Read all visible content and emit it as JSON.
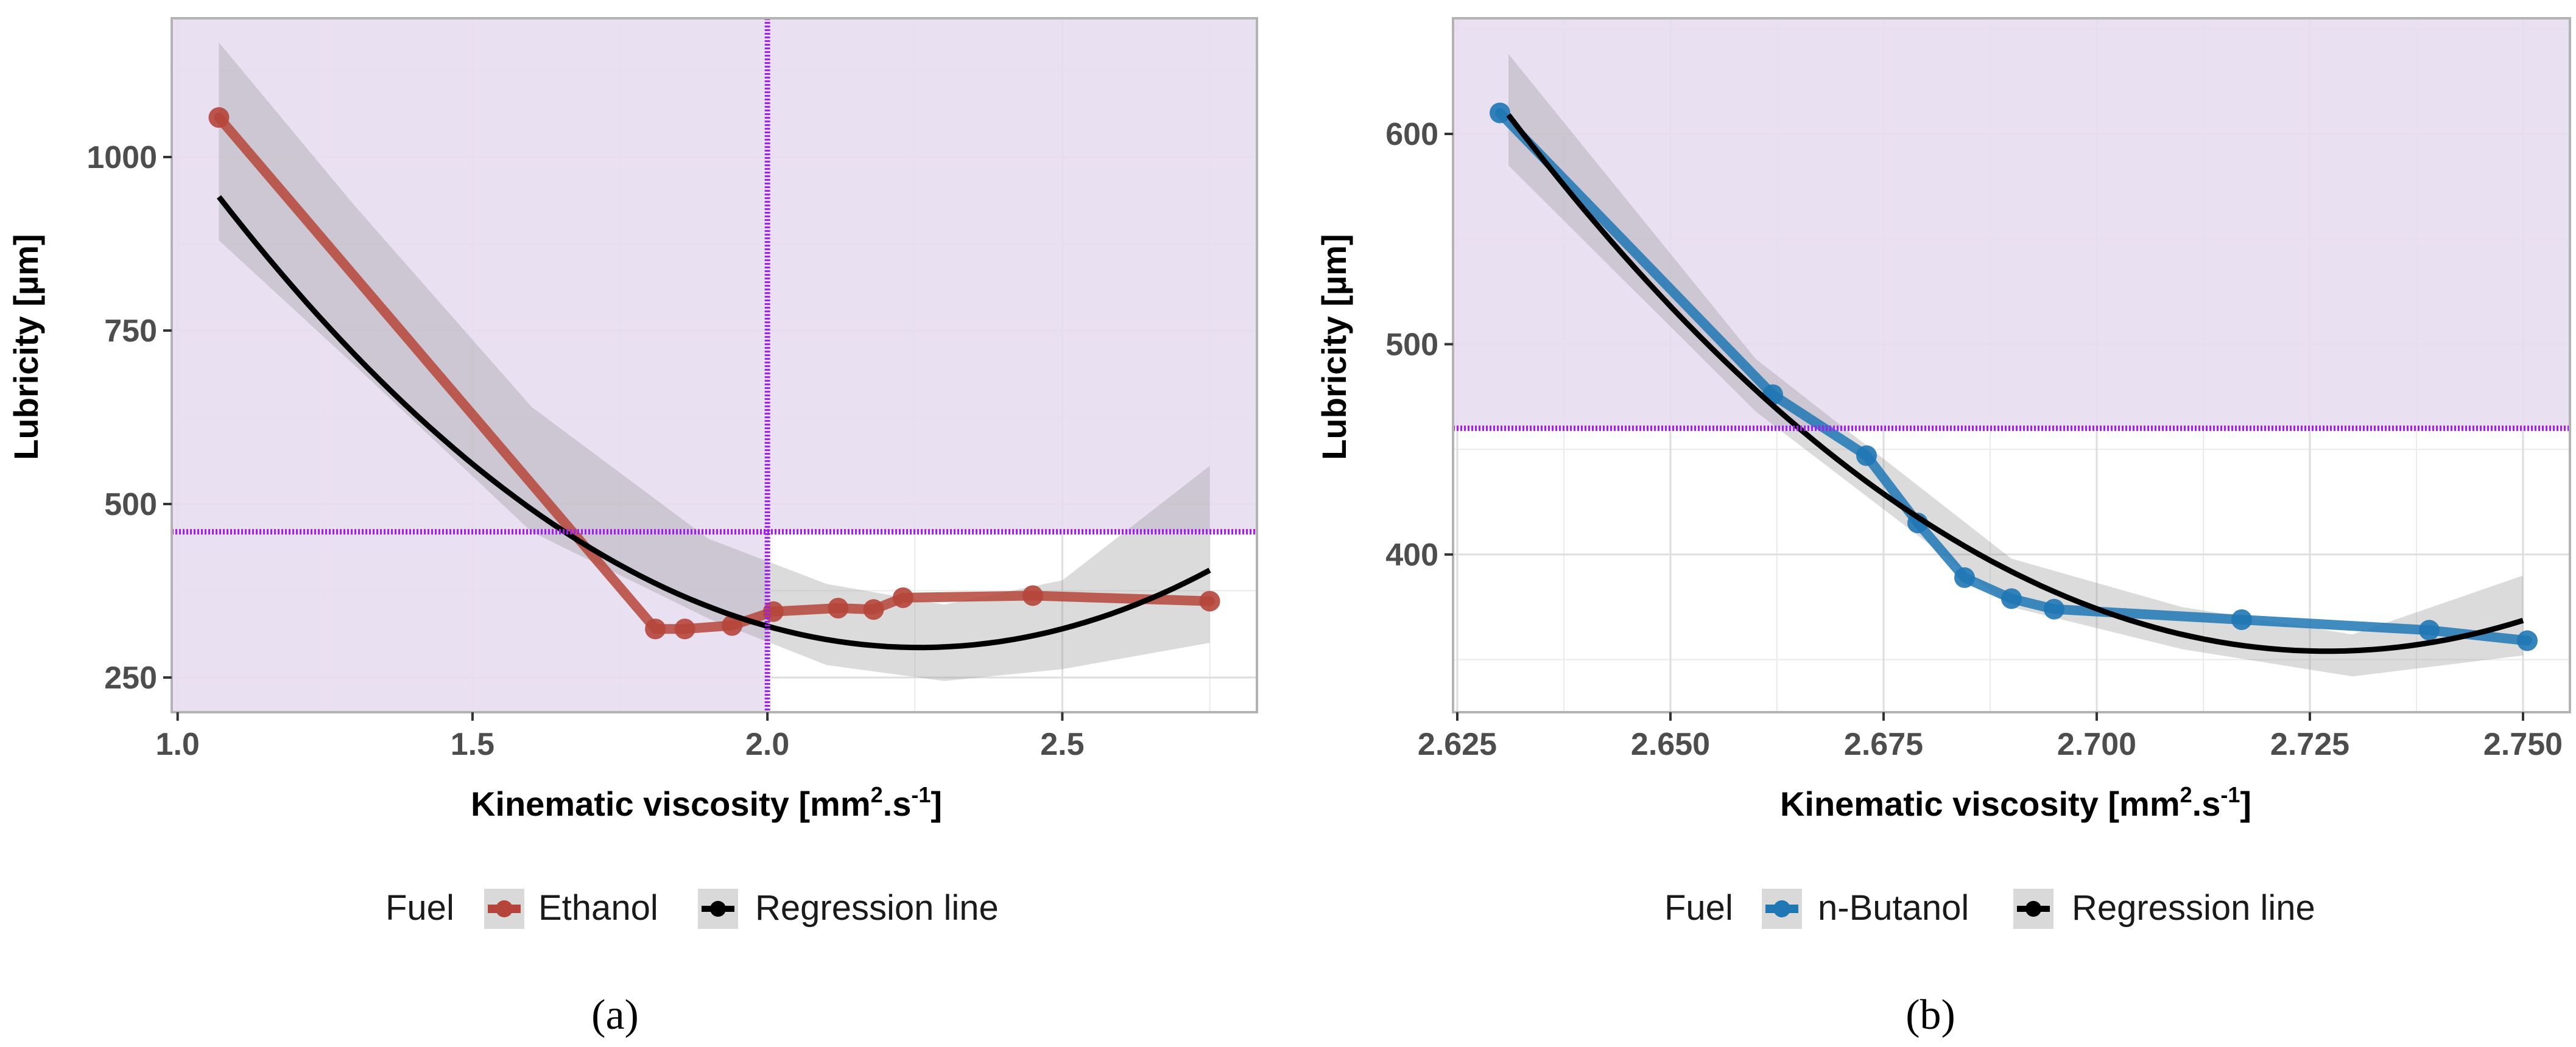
{
  "chart_data": [
    {
      "type": "line",
      "panel_label": "(a)",
      "xlabel_main": "Kinematic viscosity [mm",
      "xlabel_sup1": "2",
      "xlabel_mid": ".s",
      "xlabel_sup2": "-1",
      "xlabel_end": "]",
      "ylabel": "Lubricity [µm]",
      "xlim": [
        0.99,
        2.83
      ],
      "ylim": [
        200,
        1200
      ],
      "x_ticks": [
        1.0,
        1.5,
        2.0,
        2.5
      ],
      "x_tick_labels": [
        "1.0",
        "1.5",
        "2.0",
        "2.5"
      ],
      "y_ticks": [
        250,
        500,
        750,
        1000
      ],
      "y_tick_labels": [
        "250",
        "500",
        "750",
        "1000"
      ],
      "shaded_region": {
        "description": "limit area",
        "color": "#e7ddf1"
      },
      "hline": 460,
      "vline": 2.0,
      "limit_color": "#a020f0",
      "series": [
        {
          "name": "Ethanol",
          "color": "#b5453a",
          "x": [
            1.07,
            1.81,
            1.86,
            1.94,
            2.01,
            2.12,
            2.18,
            2.23,
            2.45,
            2.75
          ],
          "y": [
            1057,
            320,
            320,
            325,
            345,
            350,
            348,
            365,
            368,
            360
          ]
        }
      ],
      "regression": {
        "name": "Regression line",
        "coef": [
          2638.9,
          -2077.5,
          460.0
        ],
        "x_range": [
          1.07,
          2.75
        ],
        "band": {
          "x": [
            1.07,
            1.3,
            1.6,
            1.9,
            2.1,
            2.3,
            2.5,
            2.75
          ],
          "lower": [
            880,
            700,
            460,
            335,
            268,
            245,
            262,
            300
          ],
          "upper": [
            1165,
            930,
            640,
            450,
            385,
            355,
            390,
            555
          ]
        }
      },
      "legend_title": "Fuel",
      "legend_labels": [
        "Ethanol",
        "Regression line"
      ]
    },
    {
      "type": "line",
      "panel_label": "(b)",
      "xlabel_main": "Kinematic viscosity [mm",
      "xlabel_sup1": "2",
      "xlabel_mid": ".s",
      "xlabel_sup2": "-1",
      "xlabel_end": "]",
      "ylabel": "Lubricity [µm]",
      "xlim": [
        2.6245,
        2.7555
      ],
      "ylim": [
        325,
        655
      ],
      "x_ticks": [
        2.625,
        2.65,
        2.675,
        2.7,
        2.725,
        2.75
      ],
      "x_tick_labels": [
        "2.625",
        "2.650",
        "2.675",
        "2.700",
        "2.725",
        "2.750"
      ],
      "y_ticks": [
        400,
        500,
        600
      ],
      "y_tick_labels": [
        "400",
        "500",
        "600"
      ],
      "shaded_region": {
        "description": "limit area",
        "color": "#e7ddf1"
      },
      "hline": 460,
      "limit_color": "#a020f0",
      "series": [
        {
          "name": "n-Butanol",
          "color": "#1f77b4",
          "x": [
            2.63,
            2.662,
            2.673,
            2.679,
            2.6845,
            2.69,
            2.695,
            2.717,
            2.739,
            2.7505
          ],
          "y": [
            610,
            476,
            447,
            415,
            389,
            379,
            374,
            369,
            364,
            359
          ]
        }
      ],
      "regression": {
        "name": "Regression line",
        "x_range": [
          2.631,
          2.75
        ],
        "vertex_x": 2.727,
        "vertex_y": 354,
        "y_at_start": 609,
        "band": {
          "x": [
            2.631,
            2.66,
            2.69,
            2.71,
            2.73,
            2.75
          ],
          "lower": [
            585,
            468,
            375,
            355,
            342,
            352
          ],
          "upper": [
            638,
            493,
            398,
            375,
            362,
            390
          ]
        }
      },
      "legend_title": "Fuel",
      "legend_labels": [
        "n-Butanol",
        "Regression line"
      ]
    }
  ]
}
